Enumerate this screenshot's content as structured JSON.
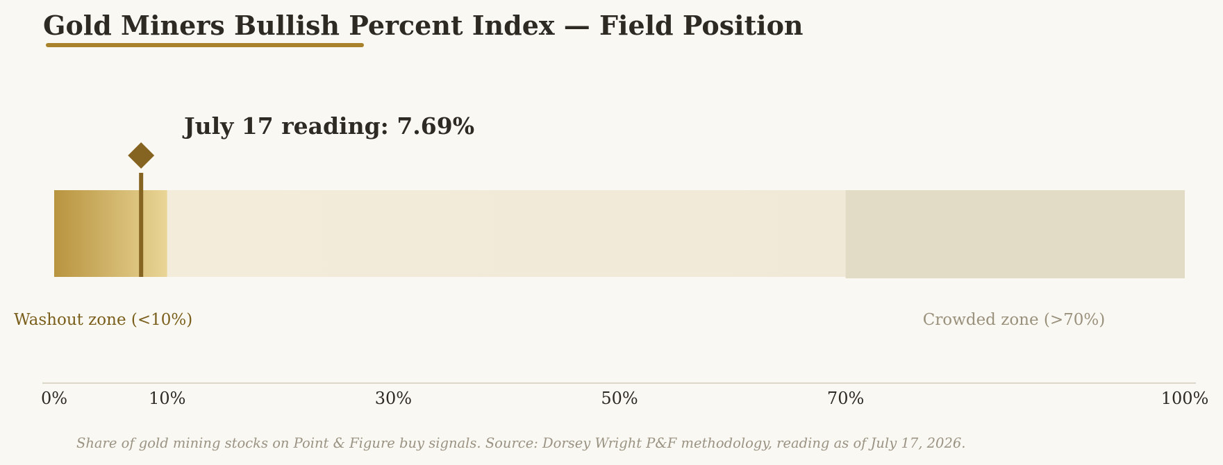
{
  "page": {
    "title": "Gold Miners Bullish Percent Index — Field Position",
    "caption": "Share of gold mining stocks on Point & Figure buy signals. Source: Dorsey Wright P&F methodology, reading as of July 17, 2026."
  },
  "chart_data": {
    "type": "bullet",
    "title": "Gold Miners Bullish Percent Index — Field Position",
    "reading": {
      "label": "July 17 reading: 7.69%",
      "value": 7.69
    },
    "xlim": [
      0,
      100
    ],
    "ticks": [
      {
        "value": 0,
        "label": "0%"
      },
      {
        "value": 10,
        "label": "10%"
      },
      {
        "value": 30,
        "label": "30%"
      },
      {
        "value": 50,
        "label": "50%"
      },
      {
        "value": 70,
        "label": "70%"
      },
      {
        "value": 100,
        "label": "100%"
      }
    ],
    "zones": [
      {
        "from": 0,
        "to": 10,
        "label": "Washout zone (<10%)",
        "color": "#b8943f",
        "color_end": "#e9d596",
        "label_color": "#7a5f1c"
      },
      {
        "from": 10,
        "to": 70,
        "label": "",
        "color": "#f4ecdb",
        "color_end": "#f1e9d7"
      },
      {
        "from": 70,
        "to": 100,
        "label": "Crowded zone (>70%)",
        "color": "#e2dbc5",
        "label_color": "#9a917d"
      }
    ],
    "colors": {
      "marker": "#856422",
      "title_underline": "#a8832b",
      "axis_line": "#dcd6c8",
      "text": "#2d2a24"
    }
  }
}
